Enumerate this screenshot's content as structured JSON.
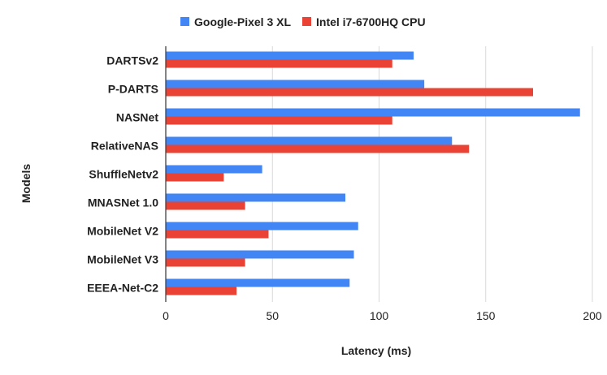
{
  "chart_data": {
    "type": "bar",
    "orientation": "horizontal",
    "title": "",
    "xlabel": "Latency (ms)",
    "ylabel": "Models",
    "xlim": [
      0,
      200
    ],
    "xticks": [
      "0",
      "50",
      "100",
      "150",
      "200"
    ],
    "grid": true,
    "legend_position": "top",
    "categories": [
      "DARTSv2",
      "P-DARTS",
      "NASNet",
      "RelativeNAS",
      "ShuffleNetv2",
      "MNASNet 1.0",
      "MobileNet V2",
      "MobileNet V3",
      "EEEA-Net-C2"
    ],
    "series": [
      {
        "name": "Google-Pixel 3 XL",
        "color": "#4285f4",
        "values": [
          116,
          121,
          194,
          134,
          45,
          84,
          90,
          88,
          86
        ]
      },
      {
        "name": "Intel i7-6700HQ CPU",
        "color": "#ea4335",
        "values": [
          106,
          172,
          106,
          142,
          27,
          37,
          48,
          37,
          33
        ]
      }
    ]
  }
}
